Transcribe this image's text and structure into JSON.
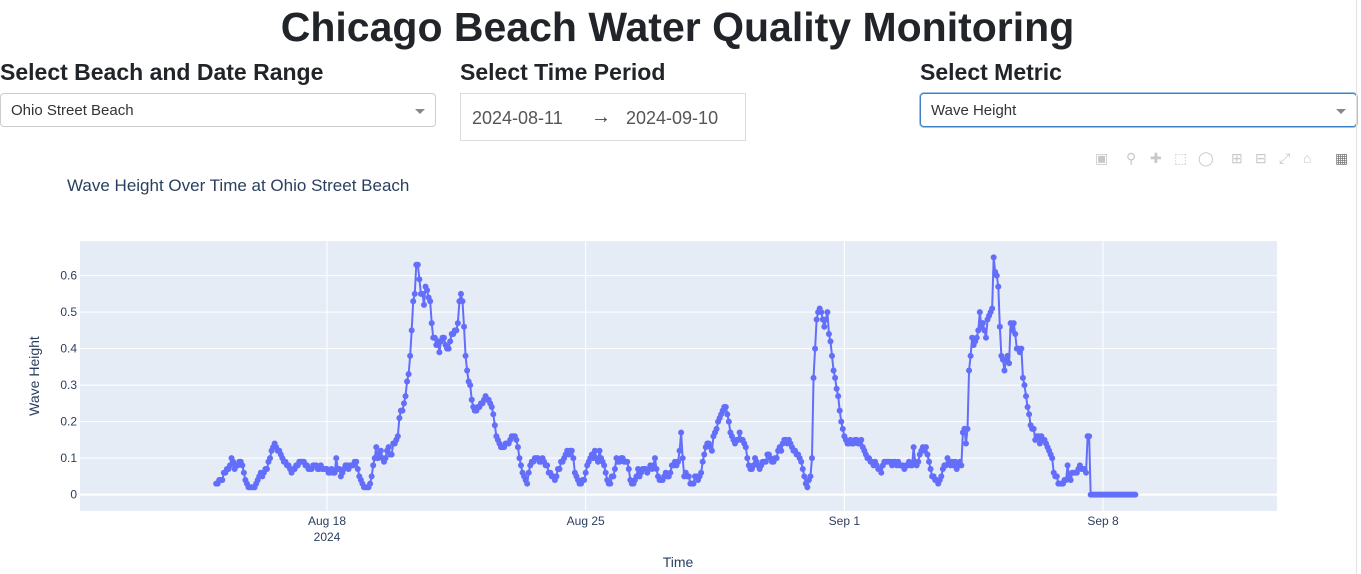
{
  "page": {
    "title": "Chicago Beach Water Quality Monitoring"
  },
  "controls": {
    "beach_label": "Select Beach and Date Range",
    "beach_value": "Ohio Street Beach",
    "period_label": "Select Time Period",
    "start_date": "2024-08-11",
    "end_date": "2024-09-10",
    "arrow": "→",
    "metric_label": "Select Metric",
    "metric_value": "Wave Height"
  },
  "modebar": [
    "camera-icon",
    "zoom-icon",
    "pan-icon",
    "box-select-icon",
    "lasso-icon",
    "zoom-in-icon",
    "zoom-out-icon",
    "autoscale-icon",
    "reset-axes-icon",
    "plotly-logo-icon"
  ],
  "colors": {
    "line": "#636efa",
    "plot_bg": "#e5ecf6",
    "grid": "#ffffff",
    "text": "#2a3f5f"
  },
  "chart_data": {
    "type": "line",
    "title": "Wave Height Over Time at Ohio Street Beach",
    "xlabel": "Time",
    "ylabel": "Wave Height",
    "x_ticks": [
      {
        "label": "Aug 18",
        "sub": "2024",
        "day": 18
      },
      {
        "label": "Aug 25",
        "sub": "",
        "day": 25
      },
      {
        "label": "Sep 1",
        "sub": "",
        "day": 32
      },
      {
        "label": "Sep 8",
        "sub": "",
        "day": 39
      }
    ],
    "y_ticks": [
      0,
      0.1,
      0.2,
      0.3,
      0.4,
      0.5,
      0.6
    ],
    "xlim": [
      "2024-08-13 06:00",
      "2024-09-12 18:00"
    ],
    "ylim": [
      -0.045,
      0.695
    ],
    "grid": true,
    "markers": true,
    "series": [
      {
        "x_start": "2024-08-15 00:00",
        "x_step": "hourly",
        "values": [
          0.03,
          0.03,
          0.04,
          0.04,
          0.04,
          0.06,
          0.06,
          0.07,
          0.07,
          0.08,
          0.1,
          0.09,
          0.07,
          0.08,
          0.08,
          0.09,
          0.09,
          0.08,
          0.06,
          0.04,
          0.03,
          0.02,
          0.02,
          0.02,
          0.02,
          0.02,
          0.03,
          0.04,
          0.05,
          0.06,
          0.05,
          0.06,
          0.07,
          0.07,
          0.09,
          0.1,
          0.12,
          0.13,
          0.14,
          0.13,
          0.12,
          0.12,
          0.11,
          0.1,
          0.09,
          0.09,
          0.08,
          0.08,
          0.07,
          0.06,
          0.07,
          0.07,
          0.08,
          0.08,
          0.09,
          0.09,
          0.09,
          0.09,
          0.08,
          0.08,
          0.07,
          0.07,
          0.07,
          0.08,
          0.08,
          0.08,
          0.07,
          0.07,
          0.08,
          0.07,
          0.07,
          0.07,
          0.07,
          0.06,
          0.06,
          0.07,
          0.06,
          0.06,
          0.1,
          0.07,
          0.07,
          0.05,
          0.06,
          0.07,
          0.08,
          0.08,
          0.07,
          0.08,
          0.08,
          0.08,
          0.09,
          0.09,
          0.07,
          0.05,
          0.04,
          0.03,
          0.02,
          0.02,
          0.02,
          0.02,
          0.03,
          0.05,
          0.08,
          0.1,
          0.13,
          0.1,
          0.11,
          0.12,
          0.1,
          0.09,
          0.1,
          0.12,
          0.13,
          0.11,
          0.11,
          0.14,
          0.14,
          0.15,
          0.16,
          0.21,
          0.23,
          0.23,
          0.25,
          0.27,
          0.31,
          0.33,
          0.38,
          0.45,
          0.53,
          0.55,
          0.63,
          0.63,
          0.59,
          0.55,
          0.55,
          0.52,
          0.57,
          0.56,
          0.54,
          0.53,
          0.47,
          0.43,
          0.43,
          0.41,
          0.42,
          0.39,
          0.42,
          0.43,
          0.43,
          0.41,
          0.4,
          0.4,
          0.42,
          0.44,
          0.44,
          0.45,
          0.45,
          0.47,
          0.53,
          0.55,
          0.53,
          0.46,
          0.38,
          0.34,
          0.31,
          0.3,
          0.26,
          0.24,
          0.23,
          0.23,
          0.24,
          0.24,
          0.25,
          0.25,
          0.26,
          0.27,
          0.26,
          0.26,
          0.25,
          0.24,
          0.22,
          0.19,
          0.16,
          0.15,
          0.14,
          0.13,
          0.13,
          0.13,
          0.14,
          0.14,
          0.14,
          0.15,
          0.16,
          0.16,
          0.16,
          0.15,
          0.13,
          0.1,
          0.08,
          0.06,
          0.05,
          0.04,
          0.03,
          0.06,
          0.08,
          0.09,
          0.09,
          0.1,
          0.1,
          0.1,
          0.09,
          0.09,
          0.1,
          0.09,
          0.08,
          0.08,
          0.06,
          0.06,
          0.05,
          0.05,
          0.04,
          0.05,
          0.07,
          0.07,
          0.09,
          0.09,
          0.1,
          0.11,
          0.12,
          0.11,
          0.12,
          0.12,
          0.1,
          0.06,
          0.05,
          0.04,
          0.03,
          0.03,
          0.04,
          0.04,
          0.06,
          0.08,
          0.09,
          0.1,
          0.11,
          0.1,
          0.12,
          0.1,
          0.09,
          0.12,
          0.1,
          0.09,
          0.08,
          0.06,
          0.04,
          0.03,
          0.03,
          0.05,
          0.05,
          0.07,
          0.1,
          0.09,
          0.09,
          0.1,
          0.1,
          0.09,
          0.09,
          0.09,
          0.07,
          0.04,
          0.03,
          0.03,
          0.04,
          0.05,
          0.07,
          0.05,
          0.06,
          0.07,
          0.07,
          0.07,
          0.06,
          0.07,
          0.08,
          0.07,
          0.08,
          0.1,
          0.07,
          0.05,
          0.04,
          0.04,
          0.04,
          0.05,
          0.06,
          0.05,
          0.05,
          0.06,
          0.08,
          0.08,
          0.09,
          0.08,
          0.09,
          0.12,
          0.17,
          0.1,
          0.05,
          0.06,
          0.05,
          0.05,
          0.03,
          0.03,
          0.03,
          0.05,
          0.05,
          0.04,
          0.05,
          0.06,
          0.09,
          0.11,
          0.13,
          0.14,
          0.14,
          0.13,
          0.12,
          0.16,
          0.17,
          0.18,
          0.2,
          0.21,
          0.22,
          0.23,
          0.24,
          0.24,
          0.22,
          0.2,
          0.17,
          0.16,
          0.15,
          0.14,
          0.15,
          0.15,
          0.17,
          0.15,
          0.15,
          0.14,
          0.13,
          0.1,
          0.08,
          0.07,
          0.07,
          0.08,
          0.1,
          0.09,
          0.08,
          0.07,
          0.08,
          0.09,
          0.09,
          0.09,
          0.11,
          0.11,
          0.1,
          0.09,
          0.09,
          0.1,
          0.1,
          0.12,
          0.13,
          0.12,
          0.14,
          0.15,
          0.15,
          0.14,
          0.15,
          0.14,
          0.13,
          0.12,
          0.12,
          0.11,
          0.11,
          0.1,
          0.09,
          0.07,
          0.05,
          0.03,
          0.02,
          0.04,
          0.05,
          0.1,
          0.32,
          0.4,
          0.48,
          0.5,
          0.51,
          0.5,
          0.48,
          0.46,
          0.48,
          0.5,
          0.44,
          0.42,
          0.38,
          0.34,
          0.32,
          0.29,
          0.27,
          0.23,
          0.2,
          0.18,
          0.16,
          0.15,
          0.14,
          0.14,
          0.15,
          0.14,
          0.14,
          0.15,
          0.15,
          0.14,
          0.14,
          0.15,
          0.13,
          0.12,
          0.11,
          0.1,
          0.1,
          0.09,
          0.09,
          0.08,
          0.09,
          0.08,
          0.07,
          0.07,
          0.06,
          0.08,
          0.09,
          0.09,
          0.09,
          0.09,
          0.09,
          0.08,
          0.09,
          0.09,
          0.08,
          0.09,
          0.08,
          0.08,
          0.08,
          0.07,
          0.08,
          0.08,
          0.09,
          0.08,
          0.08,
          0.13,
          0.09,
          0.08,
          0.09,
          0.11,
          0.12,
          0.13,
          0.12,
          0.13,
          0.11,
          0.09,
          0.07,
          0.05,
          0.05,
          0.04,
          0.04,
          0.03,
          0.04,
          0.05,
          0.07,
          0.08,
          0.08,
          0.1,
          0.09,
          0.08,
          0.09,
          0.08,
          0.09,
          0.07,
          0.08,
          0.09,
          0.08,
          0.17,
          0.18,
          0.14,
          0.18,
          0.34,
          0.38,
          0.43,
          0.41,
          0.42,
          0.43,
          0.45,
          0.5,
          0.46,
          0.47,
          0.45,
          0.43,
          0.48,
          0.49,
          0.5,
          0.51,
          0.65,
          0.61,
          0.6,
          0.57,
          0.46,
          0.38,
          0.37,
          0.34,
          0.37,
          0.38,
          0.36,
          0.47,
          0.45,
          0.47,
          0.44,
          0.4,
          0.4,
          0.39,
          0.4,
          0.32,
          0.3,
          0.27,
          0.24,
          0.22,
          0.19,
          0.18,
          0.18,
          0.15,
          0.16,
          0.16,
          0.14,
          0.16,
          0.15,
          0.15,
          0.14,
          0.13,
          0.12,
          0.11,
          0.1,
          0.06,
          0.05,
          0.05,
          0.03,
          0.03,
          0.03,
          0.03,
          0.04,
          0.04,
          0.08,
          0.05,
          0.04,
          0.06,
          0.06,
          0.06,
          0.06,
          0.07,
          0.08,
          0.07,
          0.07,
          0.07,
          0.06,
          0.16,
          0.16,
          0,
          0,
          0,
          0,
          0,
          0,
          0,
          0,
          0,
          0,
          0,
          0,
          0,
          0,
          0,
          0,
          0,
          0,
          0,
          0,
          0,
          0,
          0,
          0,
          0,
          0,
          0,
          0,
          0,
          0
        ]
      }
    ]
  }
}
